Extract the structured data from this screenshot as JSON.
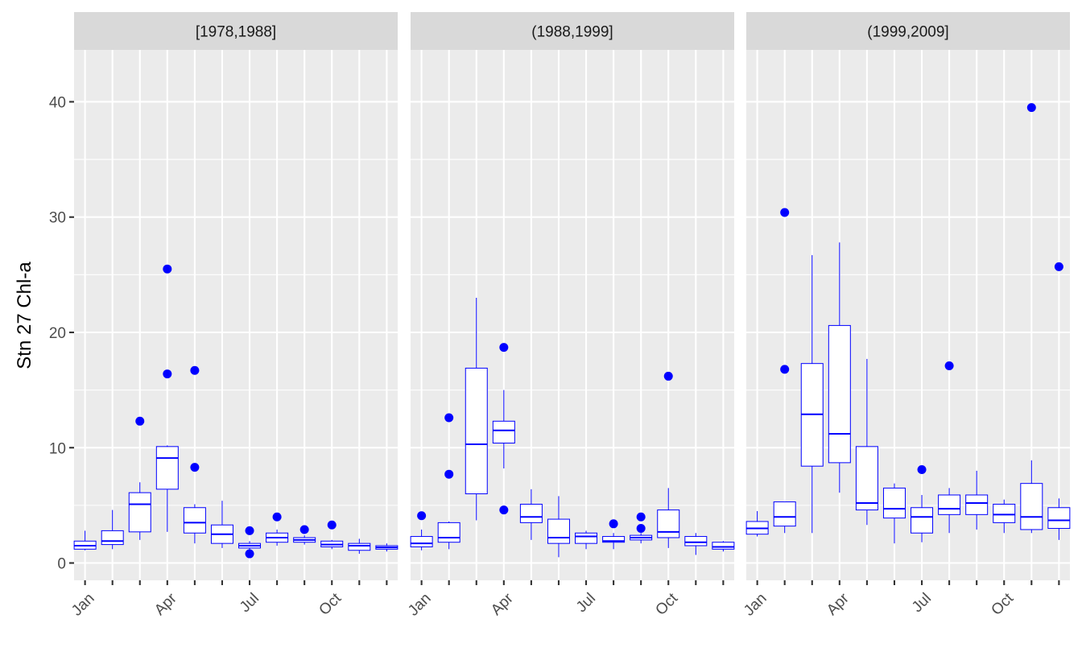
{
  "chart_data": {
    "type": "box",
    "ylabel": "Stn 27 Chl-a",
    "xlabel": "",
    "ylim": [
      -1.5,
      44.5
    ],
    "yticks": [
      0,
      10,
      20,
      30,
      40
    ],
    "months": [
      1,
      2,
      3,
      4,
      5,
      6,
      7,
      8,
      9,
      10,
      11,
      12
    ],
    "xtick_months": [
      1,
      2,
      3,
      4,
      5,
      6,
      7,
      8,
      9,
      10,
      11,
      12
    ],
    "xtick_labels": {
      "1": "Jan",
      "4": "Apr",
      "7": "Jul",
      "10": "Oct"
    },
    "grid": true,
    "box_color": "#0000ff",
    "outlier_color": "#0000ff",
    "panels": [
      {
        "label": "[1978,1988]",
        "boxes": [
          {
            "month": 1,
            "lw": 1.1,
            "q1": 1.2,
            "med": 1.5,
            "q3": 1.9,
            "uw": 2.8,
            "outliers": []
          },
          {
            "month": 2,
            "lw": 1.2,
            "q1": 1.6,
            "med": 1.9,
            "q3": 2.8,
            "uw": 4.6,
            "outliers": []
          },
          {
            "month": 3,
            "lw": 2.0,
            "q1": 2.7,
            "med": 5.1,
            "q3": 6.1,
            "uw": 7.0,
            "outliers": [
              12.3
            ]
          },
          {
            "month": 4,
            "lw": 2.7,
            "q1": 6.4,
            "med": 9.1,
            "q3": 10.1,
            "uw": 10.2,
            "outliers": [
              16.4,
              25.5
            ]
          },
          {
            "month": 5,
            "lw": 1.7,
            "q1": 2.6,
            "med": 3.5,
            "q3": 4.8,
            "uw": 5.1,
            "outliers": [
              8.3,
              16.7
            ]
          },
          {
            "month": 6,
            "lw": 1.3,
            "q1": 1.7,
            "med": 2.5,
            "q3": 3.3,
            "uw": 5.4,
            "outliers": []
          },
          {
            "month": 7,
            "lw": 1.1,
            "q1": 1.3,
            "med": 1.5,
            "q3": 1.7,
            "uw": 1.9,
            "outliers": [
              0.8,
              2.8
            ]
          },
          {
            "month": 8,
            "lw": 1.5,
            "q1": 1.8,
            "med": 2.2,
            "q3": 2.6,
            "uw": 2.9,
            "outliers": [
              4.0
            ]
          },
          {
            "month": 9,
            "lw": 1.6,
            "q1": 1.8,
            "med": 2.0,
            "q3": 2.2,
            "uw": 2.4,
            "outliers": [
              2.9
            ]
          },
          {
            "month": 10,
            "lw": 1.2,
            "q1": 1.4,
            "med": 1.6,
            "q3": 1.9,
            "uw": 2.0,
            "outliers": [
              3.3
            ]
          },
          {
            "month": 11,
            "lw": 0.8,
            "q1": 1.1,
            "med": 1.5,
            "q3": 1.7,
            "uw": 2.1,
            "outliers": []
          },
          {
            "month": 12,
            "lw": 1.0,
            "q1": 1.2,
            "med": 1.35,
            "q3": 1.5,
            "uw": 1.7,
            "outliers": []
          }
        ]
      },
      {
        "label": "(1988,1999]",
        "boxes": [
          {
            "month": 1,
            "lw": 1.1,
            "q1": 1.4,
            "med": 1.7,
            "q3": 2.3,
            "uw": 2.9,
            "outliers": [
              4.1
            ]
          },
          {
            "month": 2,
            "lw": 1.2,
            "q1": 1.8,
            "med": 2.2,
            "q3": 3.5,
            "uw": 3.6,
            "outliers": [
              7.7,
              12.6
            ]
          },
          {
            "month": 3,
            "lw": 3.7,
            "q1": 6.0,
            "med": 10.3,
            "q3": 16.9,
            "uw": 23.0,
            "outliers": []
          },
          {
            "month": 4,
            "lw": 8.2,
            "q1": 10.4,
            "med": 11.5,
            "q3": 12.3,
            "uw": 15.0,
            "outliers": [
              4.6,
              18.7
            ]
          },
          {
            "month": 5,
            "lw": 2.0,
            "q1": 3.5,
            "med": 4.0,
            "q3": 5.1,
            "uw": 6.4,
            "outliers": []
          },
          {
            "month": 6,
            "lw": 0.5,
            "q1": 1.7,
            "med": 2.2,
            "q3": 3.8,
            "uw": 5.8,
            "outliers": []
          },
          {
            "month": 7,
            "lw": 1.2,
            "q1": 1.7,
            "med": 2.3,
            "q3": 2.6,
            "uw": 2.8,
            "outliers": []
          },
          {
            "month": 8,
            "lw": 1.2,
            "q1": 1.8,
            "med": 1.9,
            "q3": 2.3,
            "uw": 2.6,
            "outliers": [
              3.4
            ]
          },
          {
            "month": 9,
            "lw": 1.7,
            "q1": 2.0,
            "med": 2.2,
            "q3": 2.4,
            "uw": 2.6,
            "outliers": [
              3.0,
              4.0
            ]
          },
          {
            "month": 10,
            "lw": 1.3,
            "q1": 2.2,
            "med": 2.7,
            "q3": 4.6,
            "uw": 6.5,
            "outliers": [
              16.2
            ]
          },
          {
            "month": 11,
            "lw": 0.7,
            "q1": 1.5,
            "med": 1.8,
            "q3": 2.3,
            "uw": 2.6,
            "outliers": []
          },
          {
            "month": 12,
            "lw": 1.0,
            "q1": 1.2,
            "med": 1.4,
            "q3": 1.8,
            "uw": 1.9,
            "outliers": []
          }
        ]
      },
      {
        "label": "(1999,2009]",
        "boxes": [
          {
            "month": 1,
            "lw": 2.3,
            "q1": 2.5,
            "med": 3.0,
            "q3": 3.6,
            "uw": 4.5,
            "outliers": []
          },
          {
            "month": 2,
            "lw": 2.6,
            "q1": 3.2,
            "med": 4.0,
            "q3": 5.3,
            "uw": 5.3,
            "outliers": [
              16.8,
              30.4
            ]
          },
          {
            "month": 3,
            "lw": 2.6,
            "q1": 8.4,
            "med": 12.9,
            "q3": 17.3,
            "uw": 26.7,
            "outliers": []
          },
          {
            "month": 4,
            "lw": 6.1,
            "q1": 8.7,
            "med": 11.2,
            "q3": 20.6,
            "uw": 27.8,
            "outliers": []
          },
          {
            "month": 5,
            "lw": 3.3,
            "q1": 4.6,
            "med": 5.2,
            "q3": 10.1,
            "uw": 17.7,
            "outliers": []
          },
          {
            "month": 6,
            "lw": 1.7,
            "q1": 3.9,
            "med": 4.7,
            "q3": 6.5,
            "uw": 6.9,
            "outliers": []
          },
          {
            "month": 7,
            "lw": 1.8,
            "q1": 2.6,
            "med": 4.0,
            "q3": 4.8,
            "uw": 5.9,
            "outliers": [
              8.1
            ]
          },
          {
            "month": 8,
            "lw": 2.6,
            "q1": 4.2,
            "med": 4.7,
            "q3": 5.9,
            "uw": 6.5,
            "outliers": [
              17.1
            ]
          },
          {
            "month": 9,
            "lw": 2.9,
            "q1": 4.2,
            "med": 5.2,
            "q3": 5.9,
            "uw": 8.0,
            "outliers": []
          },
          {
            "month": 10,
            "lw": 2.6,
            "q1": 3.5,
            "med": 4.2,
            "q3": 5.1,
            "uw": 5.5,
            "outliers": []
          },
          {
            "month": 11,
            "lw": 2.6,
            "q1": 2.9,
            "med": 4.0,
            "q3": 6.9,
            "uw": 8.9,
            "outliers": [
              39.5
            ]
          },
          {
            "month": 12,
            "lw": 2.0,
            "q1": 3.0,
            "med": 3.7,
            "q3": 4.8,
            "uw": 5.6,
            "outliers": [
              25.7
            ]
          }
        ]
      }
    ]
  }
}
